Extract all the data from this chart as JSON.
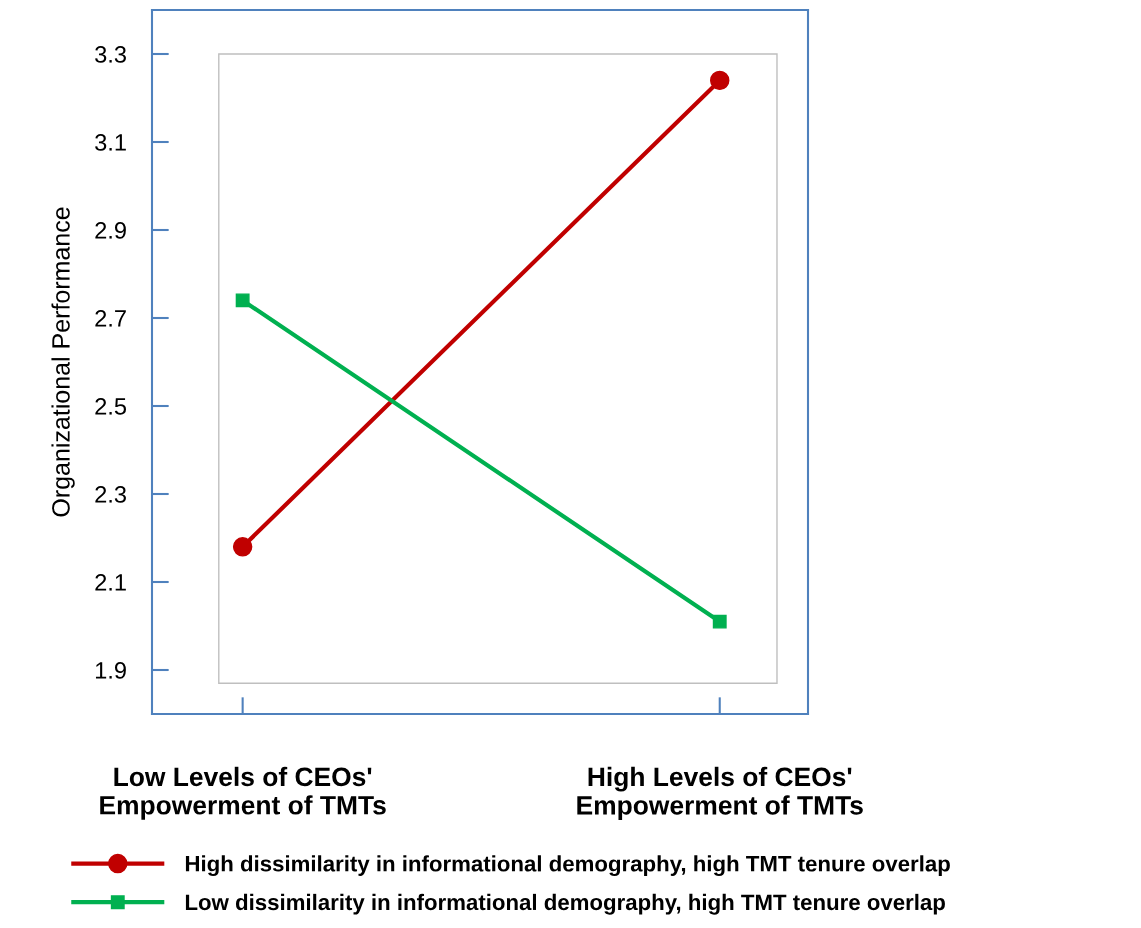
{
  "chart_data": {
    "type": "line",
    "ylabel": "Organizational Performance",
    "categories": [
      "Low Levels of CEOs'\nEmpowerment of TMTs",
      "High Levels of CEOs'\nEmpowerment of TMTs"
    ],
    "series": [
      {
        "name": "High dissimilarity in informational demography, high TMT tenure overlap",
        "color": "#c00000",
        "marker": "circle",
        "values": [
          2.18,
          3.24
        ]
      },
      {
        "name": "Low dissimilarity in informational demography, high TMT tenure overlap",
        "color": "#00b050",
        "marker": "square",
        "values": [
          2.74,
          2.01
        ]
      }
    ],
    "ylim": [
      1.8,
      3.4
    ],
    "yticks": [
      1.9,
      2.1,
      2.3,
      2.5,
      2.7,
      2.9,
      3.1,
      3.3
    ],
    "grid": false,
    "legend": "bottom",
    "line_style": "solid"
  }
}
